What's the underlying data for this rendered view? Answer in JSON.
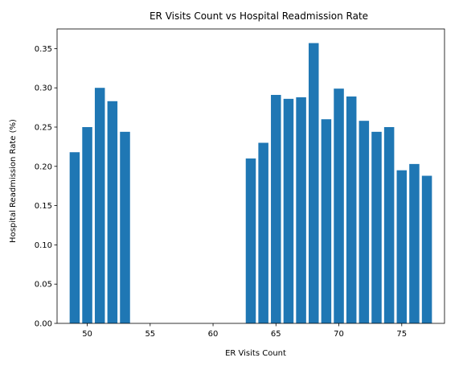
{
  "chart_data": {
    "type": "bar",
    "title": "ER Visits Count vs Hospital Readmission Rate",
    "xlabel": "ER Visits Count",
    "ylabel": "Hospital Readmission Rate (%)",
    "x": [
      49,
      50,
      51,
      52,
      53,
      63,
      64,
      65,
      66,
      67,
      68,
      69,
      70,
      71,
      72,
      73,
      74,
      75,
      76,
      77
    ],
    "values": [
      0.218,
      0.25,
      0.3,
      0.283,
      0.244,
      0.21,
      0.23,
      0.291,
      0.286,
      0.288,
      0.357,
      0.26,
      0.299,
      0.289,
      0.258,
      0.244,
      0.25,
      0.195,
      0.203,
      0.188
    ],
    "xlim": [
      47.6,
      78.4
    ],
    "ylim": [
      0,
      0.375
    ],
    "xticks": [
      50,
      55,
      60,
      65,
      70,
      75
    ],
    "yticks": [
      0.0,
      0.05,
      0.1,
      0.15,
      0.2,
      0.25,
      0.3,
      0.35
    ],
    "bar_color": "#1f77b4",
    "grid": false
  }
}
